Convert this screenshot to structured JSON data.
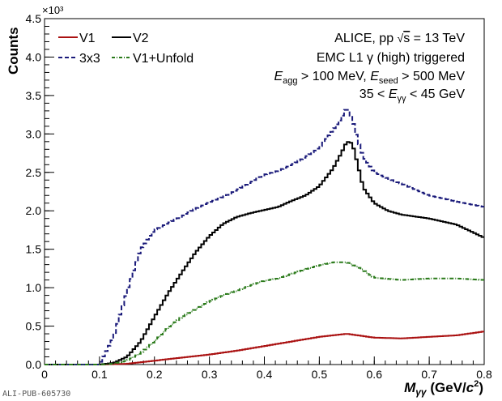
{
  "chart_data": {
    "type": "line",
    "xlabel": "M_γγ (GeV/c²)",
    "ylabel": "Counts",
    "y_multiplier": "×10³",
    "xlim": [
      0,
      0.8
    ],
    "ylim": [
      0,
      4.5
    ],
    "x_ticks": [
      0,
      0.1,
      0.2,
      0.3,
      0.4,
      0.5,
      0.6,
      0.7,
      0.8
    ],
    "y_ticks": [
      0,
      0.5,
      1.0,
      1.5,
      2.0,
      2.5,
      3.0,
      3.5,
      4.0,
      4.5
    ],
    "legend_position": "top-left",
    "annotations": [
      "ALICE, pp √s = 13 TeV",
      "EMC L1 γ (high) triggered",
      "E_agg > 100 MeV, E_seed > 500 MeV",
      "35 < E_γγ < 45 GeV"
    ],
    "footer": "ALI-PUB-605730",
    "series": [
      {
        "name": "V1",
        "color": "#aa1111",
        "style": "solid",
        "x": [
          0.1,
          0.15,
          0.2,
          0.25,
          0.3,
          0.35,
          0.4,
          0.45,
          0.5,
          0.55,
          0.6,
          0.65,
          0.7,
          0.75,
          0.8
        ],
        "values": [
          0,
          0.01,
          0.05,
          0.09,
          0.13,
          0.18,
          0.24,
          0.3,
          0.36,
          0.4,
          0.35,
          0.34,
          0.36,
          0.38,
          0.43
        ]
      },
      {
        "name": "V2",
        "color": "#000000",
        "style": "solid",
        "x": [
          0.1,
          0.125,
          0.15,
          0.175,
          0.2,
          0.225,
          0.25,
          0.275,
          0.3,
          0.325,
          0.35,
          0.375,
          0.4,
          0.425,
          0.45,
          0.475,
          0.5,
          0.525,
          0.54,
          0.55,
          0.56,
          0.57,
          0.58,
          0.6,
          0.625,
          0.65,
          0.7,
          0.75,
          0.8
        ],
        "values": [
          0,
          0.02,
          0.1,
          0.3,
          0.62,
          0.93,
          1.2,
          1.46,
          1.67,
          1.83,
          1.92,
          1.97,
          2.01,
          2.05,
          2.13,
          2.2,
          2.32,
          2.55,
          2.75,
          2.9,
          2.88,
          2.6,
          2.3,
          2.1,
          2.0,
          1.95,
          1.9,
          1.82,
          1.65
        ]
      },
      {
        "name": "3x3",
        "color": "#1a1a7a",
        "style": "dashed",
        "x": [
          0.1,
          0.125,
          0.15,
          0.175,
          0.2,
          0.225,
          0.25,
          0.275,
          0.3,
          0.325,
          0.35,
          0.375,
          0.4,
          0.425,
          0.45,
          0.475,
          0.5,
          0.525,
          0.54,
          0.55,
          0.56,
          0.57,
          0.58,
          0.6,
          0.625,
          0.65,
          0.7,
          0.75,
          0.8
        ],
        "values": [
          0,
          0.35,
          0.95,
          1.5,
          1.75,
          1.84,
          1.93,
          2.03,
          2.11,
          2.18,
          2.27,
          2.37,
          2.47,
          2.52,
          2.6,
          2.7,
          2.82,
          3.05,
          3.2,
          3.35,
          3.2,
          2.92,
          2.7,
          2.5,
          2.42,
          2.35,
          2.2,
          2.12,
          2.05
        ]
      },
      {
        "name": "V1+Unfold",
        "color": "#2a7a1a",
        "style": "dash-dot",
        "x": [
          0.1,
          0.125,
          0.15,
          0.175,
          0.2,
          0.225,
          0.25,
          0.275,
          0.3,
          0.325,
          0.35,
          0.375,
          0.4,
          0.425,
          0.45,
          0.475,
          0.5,
          0.525,
          0.55,
          0.575,
          0.6,
          0.65,
          0.7,
          0.75,
          0.8
        ],
        "values": [
          0,
          0.01,
          0.05,
          0.15,
          0.3,
          0.48,
          0.62,
          0.72,
          0.82,
          0.9,
          0.96,
          1.03,
          1.09,
          1.12,
          1.18,
          1.24,
          1.29,
          1.33,
          1.33,
          1.25,
          1.13,
          1.1,
          1.12,
          1.12,
          1.1
        ]
      }
    ]
  }
}
